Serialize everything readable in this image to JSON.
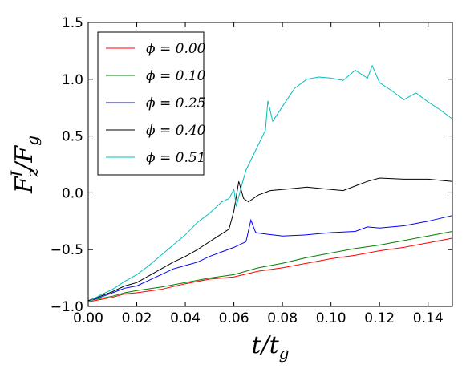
{
  "chart_data": {
    "type": "line",
    "title": "",
    "xlabel": "t/t_g",
    "ylabel": "F_z^I/F_g",
    "xlim": [
      0.0,
      0.15
    ],
    "ylim": [
      -1.0,
      1.5
    ],
    "xticks": [
      "0.00",
      "0.02",
      "0.04",
      "0.06",
      "0.08",
      "0.10",
      "0.12",
      "0.14"
    ],
    "yticks": [
      "−1.0",
      "−0.5",
      "0.0",
      "0.5",
      "1.0",
      "1.5"
    ],
    "grid": false,
    "legend_position": "top-left",
    "series": [
      {
        "name": "ϕ = 0.00",
        "color": "#ff0000",
        "x": [
          0.0,
          0.005,
          0.01,
          0.015,
          0.02,
          0.03,
          0.04,
          0.05,
          0.06,
          0.07,
          0.08,
          0.09,
          0.1,
          0.11,
          0.12,
          0.13,
          0.14,
          0.15
        ],
        "y": [
          -0.96,
          -0.94,
          -0.92,
          -0.89,
          -0.88,
          -0.85,
          -0.8,
          -0.76,
          -0.74,
          -0.69,
          -0.66,
          -0.62,
          -0.58,
          -0.55,
          -0.51,
          -0.48,
          -0.44,
          -0.4
        ]
      },
      {
        "name": "ϕ = 0.10",
        "color": "#008000",
        "x": [
          0.0,
          0.005,
          0.01,
          0.015,
          0.02,
          0.03,
          0.04,
          0.05,
          0.06,
          0.07,
          0.08,
          0.09,
          0.1,
          0.11,
          0.12,
          0.13,
          0.14,
          0.15
        ],
        "y": [
          -0.95,
          -0.93,
          -0.91,
          -0.88,
          -0.86,
          -0.83,
          -0.79,
          -0.75,
          -0.72,
          -0.66,
          -0.62,
          -0.57,
          -0.53,
          -0.49,
          -0.46,
          -0.42,
          -0.38,
          -0.34
        ]
      },
      {
        "name": "ϕ = 0.25",
        "color": "#0000ff",
        "x": [
          0.0,
          0.005,
          0.01,
          0.015,
          0.02,
          0.025,
          0.03,
          0.035,
          0.04,
          0.045,
          0.05,
          0.055,
          0.06,
          0.065,
          0.067,
          0.069,
          0.072,
          0.08,
          0.09,
          0.1,
          0.11,
          0.115,
          0.12,
          0.13,
          0.14,
          0.15
        ],
        "y": [
          -0.95,
          -0.92,
          -0.88,
          -0.84,
          -0.82,
          -0.77,
          -0.72,
          -0.67,
          -0.64,
          -0.61,
          -0.56,
          -0.52,
          -0.48,
          -0.43,
          -0.24,
          -0.35,
          -0.36,
          -0.38,
          -0.37,
          -0.35,
          -0.34,
          -0.3,
          -0.31,
          -0.29,
          -0.25,
          -0.2
        ]
      },
      {
        "name": "ϕ = 0.40",
        "color": "#000000",
        "x": [
          0.0,
          0.005,
          0.01,
          0.015,
          0.02,
          0.025,
          0.03,
          0.035,
          0.04,
          0.045,
          0.05,
          0.055,
          0.058,
          0.06,
          0.062,
          0.064,
          0.066,
          0.07,
          0.075,
          0.08,
          0.09,
          0.1,
          0.105,
          0.11,
          0.115,
          0.12,
          0.13,
          0.14,
          0.15
        ],
        "y": [
          -0.95,
          -0.91,
          -0.87,
          -0.82,
          -0.79,
          -0.73,
          -0.67,
          -0.61,
          -0.56,
          -0.5,
          -0.43,
          -0.36,
          -0.32,
          -0.16,
          0.1,
          -0.05,
          -0.08,
          -0.02,
          0.02,
          0.03,
          0.05,
          0.03,
          0.02,
          0.06,
          0.1,
          0.13,
          0.12,
          0.12,
          0.1
        ]
      },
      {
        "name": "ϕ = 0.51",
        "color": "#00bfbf",
        "x": [
          0.0,
          0.005,
          0.01,
          0.015,
          0.02,
          0.025,
          0.03,
          0.035,
          0.04,
          0.045,
          0.05,
          0.055,
          0.058,
          0.06,
          0.061,
          0.063,
          0.065,
          0.07,
          0.073,
          0.074,
          0.076,
          0.08,
          0.085,
          0.09,
          0.095,
          0.1,
          0.105,
          0.11,
          0.115,
          0.117,
          0.12,
          0.125,
          0.13,
          0.135,
          0.14,
          0.145,
          0.15
        ],
        "y": [
          -0.96,
          -0.9,
          -0.85,
          -0.78,
          -0.72,
          -0.64,
          -0.55,
          -0.46,
          -0.37,
          -0.26,
          -0.18,
          -0.08,
          -0.05,
          0.03,
          -0.12,
          0.05,
          0.2,
          0.42,
          0.55,
          0.81,
          0.63,
          0.76,
          0.92,
          1.0,
          1.02,
          1.01,
          0.99,
          1.08,
          1.01,
          1.12,
          0.97,
          0.9,
          0.82,
          0.88,
          0.8,
          0.73,
          0.65
        ]
      }
    ]
  }
}
